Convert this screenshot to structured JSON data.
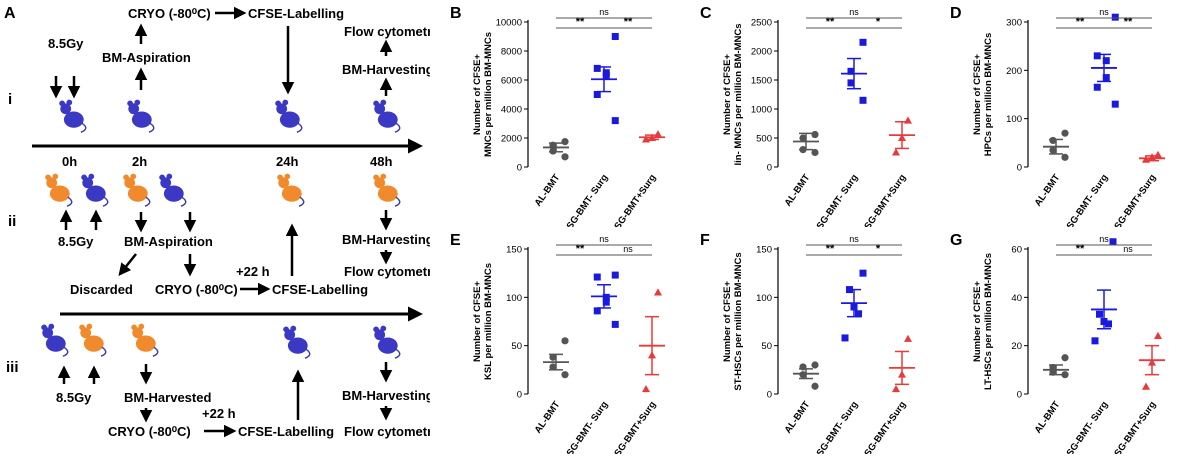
{
  "schematic": {
    "panel_letter": "A",
    "rows": [
      {
        "numeral": "i"
      },
      {
        "numeral": "ii"
      },
      {
        "numeral": "iii"
      }
    ],
    "row_i": {
      "dose": "8.5Gy",
      "aspiration": "BM-Aspiration",
      "cryo": "CRYO (-80⁰C)",
      "cfse": "CFSE-Labelling",
      "flow": "Flow cytometry",
      "harvest": "BM-Harvesting"
    },
    "timeline": {
      "t0": "0h",
      "t2": "2h",
      "t24": "24h",
      "t48": "48h"
    },
    "row_ii": {
      "dose": "8.5Gy",
      "aspiration": "BM-Aspiration",
      "discarded": "Discarded",
      "cryo": "CRYO (-80⁰C)",
      "delay": "+22 h",
      "cfse": "CFSE-Labelling",
      "harvest": "BM-Harvesting",
      "flow": "Flow cytometry"
    },
    "row_iii": {
      "dose": "8.5Gy",
      "harvested": "BM-Harvested",
      "cryo": "CRYO (-80⁰C)",
      "delay": "+22 h",
      "cfse": "CFSE-Labelling",
      "harvest": "BM-Harvesting",
      "flow": "Flow cytometry"
    },
    "colors": {
      "blue": "#3b39c4",
      "orange": "#f08a2c"
    }
  },
  "chart_data": [
    {
      "panel": "B",
      "type": "scatter",
      "ylabel": [
        "Number of CFSE+",
        "MNCs per million BM-MNCs"
      ],
      "ylim": [
        0,
        10000
      ],
      "ticks": [
        0,
        2000,
        4000,
        6000,
        8000,
        10000
      ],
      "groups": [
        {
          "name": "AL-BMT",
          "values": [
            1750,
            1500,
            1100,
            700
          ],
          "mean": 1350,
          "sem": 300
        },
        {
          "name": "SG-BMT- Surg",
          "values": [
            9000,
            6800,
            6500,
            6300,
            5000,
            3200
          ],
          "mean": 6050,
          "sem": 850
        },
        {
          "name": "SG-BMT+Surg",
          "values": [
            2250,
            2000,
            1900
          ],
          "mean": 2050,
          "sem": 150
        }
      ],
      "sig": [
        {
          "label": "ns",
          "from": 0,
          "to": 2,
          "level": 2
        },
        {
          "label": "**",
          "from": 0,
          "to": 1,
          "level": 1
        },
        {
          "label": "**",
          "from": 1,
          "to": 2,
          "level": 1
        }
      ]
    },
    {
      "panel": "C",
      "type": "scatter",
      "ylabel": [
        "Number of CFSE+",
        "lin- MNCs per million BM-MNCs"
      ],
      "ylim": [
        0,
        2500
      ],
      "ticks": [
        0,
        500,
        1000,
        1500,
        2000,
        2500
      ],
      "groups": [
        {
          "name": "AL-BMT",
          "values": [
            560,
            500,
            300,
            250
          ],
          "mean": 440,
          "sem": 140
        },
        {
          "name": "SG-BMT- Surg",
          "values": [
            2150,
            1650,
            1450,
            1150
          ],
          "mean": 1610,
          "sem": 260
        },
        {
          "name": "SG-BMT+Surg",
          "values": [
            800,
            500,
            250
          ],
          "mean": 550,
          "sem": 230
        }
      ],
      "sig": [
        {
          "label": "ns",
          "from": 0,
          "to": 2,
          "level": 2
        },
        {
          "label": "**",
          "from": 0,
          "to": 1,
          "level": 1
        },
        {
          "label": "*",
          "from": 1,
          "to": 2,
          "level": 1
        }
      ]
    },
    {
      "panel": "D",
      "type": "scatter",
      "ylabel": [
        "Number of CFSE+",
        "HPCs per million BM-MNCs"
      ],
      "ylim": [
        0,
        300
      ],
      "ticks": [
        0,
        100,
        200,
        300
      ],
      "groups": [
        {
          "name": "AL-BMT",
          "values": [
            70,
            55,
            35,
            20
          ],
          "mean": 42,
          "sem": 15
        },
        {
          "name": "SG-BMT- Surg",
          "values": [
            310,
            230,
            220,
            185,
            165,
            130
          ],
          "mean": 205,
          "sem": 28
        },
        {
          "name": "SG-BMT+Surg",
          "values": [
            25,
            20,
            15
          ],
          "mean": 18,
          "sem": 5
        }
      ],
      "sig": [
        {
          "label": "ns",
          "from": 0,
          "to": 2,
          "level": 2
        },
        {
          "label": "**",
          "from": 0,
          "to": 1,
          "level": 1
        },
        {
          "label": "**",
          "from": 1,
          "to": 2,
          "level": 1
        }
      ]
    },
    {
      "panel": "E",
      "type": "scatter",
      "ylabel": [
        "Number of CFSE+",
        "KSL per million BM-MNCs"
      ],
      "ylim": [
        0,
        150
      ],
      "ticks": [
        0,
        50,
        100,
        150
      ],
      "groups": [
        {
          "name": "AL-BMT",
          "values": [
            55,
            38,
            28,
            20
          ],
          "mean": 33,
          "sem": 8
        },
        {
          "name": "SG-BMT- Surg",
          "values": [
            123,
            121,
            100,
            95,
            86,
            72
          ],
          "mean": 101,
          "sem": 12
        },
        {
          "name": "SG-BMT+Surg",
          "values": [
            105,
            40,
            5
          ],
          "mean": 50,
          "sem": 30
        }
      ],
      "sig": [
        {
          "label": "ns",
          "from": 0,
          "to": 2,
          "level": 2
        },
        {
          "label": "**",
          "from": 0,
          "to": 1,
          "level": 1
        },
        {
          "label": "ns",
          "from": 1,
          "to": 2,
          "level": 1
        }
      ]
    },
    {
      "panel": "F",
      "type": "scatter",
      "ylabel": [
        "Number of CFSE+",
        "ST-HSCs per million BM-MNCs"
      ],
      "ylim": [
        0,
        150
      ],
      "ticks": [
        0,
        50,
        100,
        150
      ],
      "groups": [
        {
          "name": "AL-BMT",
          "values": [
            30,
            28,
            20,
            8
          ],
          "mean": 21,
          "sem": 5
        },
        {
          "name": "SG-BMT- Surg",
          "values": [
            125,
            108,
            90,
            83,
            58
          ],
          "mean": 94,
          "sem": 14
        },
        {
          "name": "SG-BMT+Surg",
          "values": [
            57,
            20,
            5
          ],
          "mean": 27,
          "sem": 17
        }
      ],
      "sig": [
        {
          "label": "ns",
          "from": 0,
          "to": 2,
          "level": 2
        },
        {
          "label": "**",
          "from": 0,
          "to": 1,
          "level": 1
        },
        {
          "label": "*",
          "from": 1,
          "to": 2,
          "level": 1
        }
      ]
    },
    {
      "panel": "G",
      "type": "scatter",
      "ylabel": [
        "Number of CFSE+",
        "LT-HSCs per million BM-MNCs"
      ],
      "ylim": [
        0,
        60
      ],
      "ticks": [
        0,
        20,
        40,
        60
      ],
      "groups": [
        {
          "name": "AL-BMT",
          "values": [
            15,
            11,
            9,
            8
          ],
          "mean": 10,
          "sem": 2
        },
        {
          "name": "SG-BMT- Surg",
          "values": [
            63,
            33,
            30,
            29,
            22
          ],
          "mean": 35,
          "sem": 8
        },
        {
          "name": "SG-BMT+Surg",
          "values": [
            24,
            13,
            3
          ],
          "mean": 14,
          "sem": 6
        }
      ],
      "sig": [
        {
          "label": "ns",
          "from": 0,
          "to": 2,
          "level": 2
        },
        {
          "label": "**",
          "from": 0,
          "to": 1,
          "level": 1
        },
        {
          "label": "ns",
          "from": 1,
          "to": 2,
          "level": 1
        }
      ]
    }
  ],
  "group_colors": [
    "#555555",
    "#1a1adf",
    "#e83a3a"
  ],
  "group_markers": [
    "circle",
    "square",
    "triangle"
  ]
}
